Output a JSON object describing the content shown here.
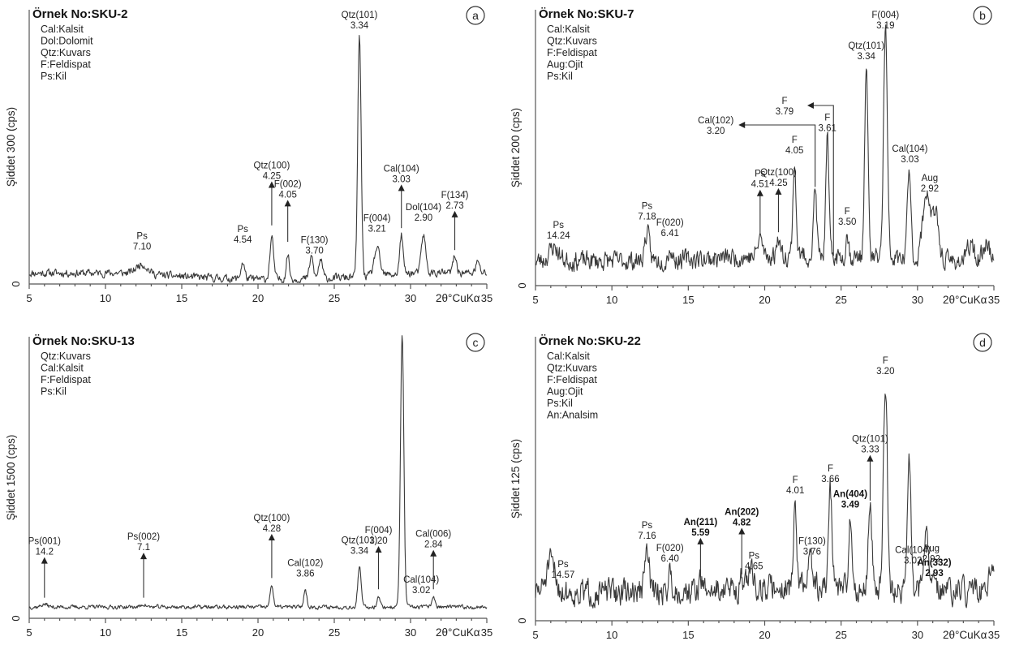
{
  "chart_data": [
    {
      "type": "line",
      "panel": "a",
      "title": "Örnek No:SKU-2",
      "legend": [
        "Cal:Kalsit",
        "Dol:Dolomit",
        "Qtz:Kuvars",
        "F:Feldispat",
        "Ps:Kil"
      ],
      "ylabel": "Şiddet 300  (cps)",
      "xlabel": "2θ°CuKα",
      "y_tick": "0",
      "xlim": [
        5,
        35
      ],
      "x_ticks": [
        "5",
        "10",
        "15",
        "20",
        "25",
        "30",
        "35"
      ],
      "baseline": 0.04,
      "peaks": [
        {
          "x": 12.4,
          "h": 0.035,
          "w": 0.35
        },
        {
          "x": 19.0,
          "h": 0.06,
          "w": 0.12
        },
        {
          "x": 20.9,
          "h": 0.15,
          "w": 0.12
        },
        {
          "x": 21.95,
          "h": 0.09,
          "w": 0.1
        },
        {
          "x": 23.5,
          "h": 0.08,
          "w": 0.12
        },
        {
          "x": 24.1,
          "h": 0.07,
          "w": 0.12
        },
        {
          "x": 26.65,
          "h": 0.88,
          "w": 0.11
        },
        {
          "x": 27.8,
          "h": 0.1,
          "w": 0.18
        },
        {
          "x": 29.4,
          "h": 0.14,
          "w": 0.11
        },
        {
          "x": 30.85,
          "h": 0.14,
          "w": 0.14
        },
        {
          "x": 32.9,
          "h": 0.06,
          "w": 0.12
        },
        {
          "x": 34.4,
          "h": 0.04,
          "w": 0.12
        }
      ],
      "labels": [
        {
          "lines": [
            "Ps",
            "7.10"
          ],
          "x": 12.4
        },
        {
          "lines": [
            "Ps",
            "4.54"
          ],
          "x": 19.0
        },
        {
          "lines": [
            "Qtz(100)",
            "4.25"
          ],
          "x": 20.9,
          "arrow": true
        },
        {
          "lines": [
            "F(002)",
            "4.05"
          ],
          "x": 21.95,
          "arrow": true
        },
        {
          "lines": [
            "F(130)",
            "3.70"
          ],
          "x": 23.7
        },
        {
          "lines": [
            "Qtz(101)",
            "3.34"
          ],
          "x": 26.65
        },
        {
          "lines": [
            "F(004)",
            "3.21"
          ],
          "x": 27.8
        },
        {
          "lines": [
            "Cal(104)",
            "3.03"
          ],
          "x": 29.4,
          "arrow": true
        },
        {
          "lines": [
            "Dol(104)",
            "2.90"
          ],
          "x": 30.85
        },
        {
          "lines": [
            "F(134̄)",
            "2.73"
          ],
          "x": 32.9,
          "arrow": true
        }
      ],
      "noise_seed": 11,
      "noise_amp": 0.012
    },
    {
      "type": "line",
      "panel": "b",
      "title": "Örnek No:SKU-7",
      "legend": [
        "Cal:Kalsit",
        "Qtz:Kuvars",
        "F:Feldispat",
        "Aug:Ojit",
        "Ps:Kil"
      ],
      "ylabel": "Şiddet 200  (cps)",
      "xlabel": "2θ°CuKα",
      "y_tick": "0",
      "xlim": [
        5,
        35
      ],
      "x_ticks": [
        "5",
        "10",
        "15",
        "20",
        "25",
        "30",
        "35"
      ],
      "baseline": 0.09,
      "peaks": [
        {
          "x": 6.2,
          "h": 0.05,
          "w": 0.3
        },
        {
          "x": 12.3,
          "h": 0.1,
          "w": 0.15
        },
        {
          "x": 13.8,
          "h": 0.04,
          "w": 0.12
        },
        {
          "x": 19.7,
          "h": 0.07,
          "w": 0.15
        },
        {
          "x": 20.9,
          "h": 0.08,
          "w": 0.1
        },
        {
          "x": 21.95,
          "h": 0.34,
          "w": 0.1
        },
        {
          "x": 23.3,
          "h": 0.25,
          "w": 0.1
        },
        {
          "x": 24.1,
          "h": 0.42,
          "w": 0.1
        },
        {
          "x": 25.4,
          "h": 0.08,
          "w": 0.1
        },
        {
          "x": 26.65,
          "h": 0.68,
          "w": 0.11
        },
        {
          "x": 27.9,
          "h": 0.84,
          "w": 0.12
        },
        {
          "x": 29.45,
          "h": 0.34,
          "w": 0.11
        },
        {
          "x": 30.6,
          "h": 0.25,
          "w": 0.25
        },
        {
          "x": 31.2,
          "h": 0.15,
          "w": 0.2
        },
        {
          "x": 33.5,
          "h": 0.06,
          "w": 0.2
        },
        {
          "x": 34.5,
          "h": 0.07,
          "w": 0.2
        }
      ],
      "labels": [
        {
          "lines": [
            "Ps",
            "14.24"
          ],
          "x": 6.5
        },
        {
          "lines": [
            "Ps",
            "7.18"
          ],
          "x": 12.3
        },
        {
          "lines": [
            "F(020)",
            "6.41"
          ],
          "x": 13.8
        },
        {
          "lines": [
            "Ps",
            "4.51"
          ],
          "x": 19.7,
          "arrow": true
        },
        {
          "lines": [
            "Qtz(100)",
            "4.25"
          ],
          "x": 20.9,
          "arrow": true
        },
        {
          "lines": [
            "F",
            "4.05"
          ],
          "x": 21.95
        },
        {
          "lines": [
            "Cal(102)",
            "3.20"
          ],
          "x": 16.8,
          "elbow": 23.3
        },
        {
          "lines": [
            "F",
            "3.79"
          ],
          "x": 21.3,
          "elbow": 24.5
        },
        {
          "lines": [
            "F",
            "3.61"
          ],
          "x": 24.1
        },
        {
          "lines": [
            "F",
            "3.50"
          ],
          "x": 25.4
        },
        {
          "lines": [
            "Qtz(101)",
            "3.34"
          ],
          "x": 26.65
        },
        {
          "lines": [
            "F(004)",
            "3.19"
          ],
          "x": 27.9
        },
        {
          "lines": [
            "Cal(104)",
            "3.03"
          ],
          "x": 29.5
        },
        {
          "lines": [
            "Aug",
            "2.92"
          ],
          "x": 30.8
        }
      ],
      "noise_seed": 23,
      "noise_amp": 0.03
    },
    {
      "type": "line",
      "panel": "c",
      "title": "Örnek No:SKU-13",
      "legend": [
        "Qtz:Kuvars",
        "Cal:Kalsit",
        "F:Feldispat",
        "Ps:Kil"
      ],
      "ylabel": "Şiddet 1500 (cps)",
      "xlabel": "2θ°CuKα",
      "y_tick": "0",
      "xlim": [
        5,
        35
      ],
      "x_ticks": [
        "5",
        "10",
        "15",
        "20",
        "25",
        "30",
        "35"
      ],
      "baseline": 0.04,
      "peaks": [
        {
          "x": 6.0,
          "h": 0.01,
          "w": 0.2
        },
        {
          "x": 12.5,
          "h": 0.01,
          "w": 0.15
        },
        {
          "x": 20.9,
          "h": 0.08,
          "w": 0.1
        },
        {
          "x": 23.1,
          "h": 0.06,
          "w": 0.1
        },
        {
          "x": 26.65,
          "h": 0.14,
          "w": 0.11
        },
        {
          "x": 27.9,
          "h": 0.04,
          "w": 0.1
        },
        {
          "x": 29.45,
          "h": 0.97,
          "w": 0.11
        },
        {
          "x": 31.5,
          "h": 0.04,
          "w": 0.1
        }
      ],
      "labels": [
        {
          "lines": [
            "Ps(001)",
            "14.2"
          ],
          "x": 6.0,
          "arrow": true
        },
        {
          "lines": [
            "Ps(002)",
            "7.1"
          ],
          "x": 12.5,
          "arrow": true
        },
        {
          "lines": [
            "Qtz(100)",
            "4.28"
          ],
          "x": 20.9,
          "arrow": true
        },
        {
          "lines": [
            "Cal(102)",
            "3.86"
          ],
          "x": 23.1
        },
        {
          "lines": [
            "Qtz(101)",
            "3.34"
          ],
          "x": 26.65
        },
        {
          "lines": [
            "F(004)",
            "3.20"
          ],
          "x": 27.9,
          "arrow": true
        },
        {
          "lines": [
            "Cal(104)",
            "3.02"
          ],
          "x": 30.7
        },
        {
          "lines": [
            "Cal(006)",
            "2.84"
          ],
          "x": 31.5,
          "arrow": true
        }
      ],
      "noise_seed": 37,
      "noise_amp": 0.006
    },
    {
      "type": "line",
      "panel": "d",
      "title": "Örnek No:SKU-22",
      "legend": [
        "Cal:Kalsit",
        "Qtz:Kuvars",
        "F:Feldispat",
        "Aug:Ojit",
        "Ps:Kil",
        "An:Analsim"
      ],
      "ylabel": "Şiddet 125 (cps)",
      "xlabel": "2θ°CuKα",
      "y_tick": "0",
      "xlim": [
        5,
        35
      ],
      "x_ticks": [
        "5",
        "10",
        "15",
        "20",
        "25",
        "30",
        "35"
      ],
      "baseline": 0.1,
      "peaks": [
        {
          "x": 6.0,
          "h": 0.1,
          "w": 0.3
        },
        {
          "x": 12.3,
          "h": 0.14,
          "w": 0.15
        },
        {
          "x": 13.8,
          "h": 0.06,
          "w": 0.12
        },
        {
          "x": 15.8,
          "h": 0.03,
          "w": 0.12
        },
        {
          "x": 18.5,
          "h": 0.04,
          "w": 0.12
        },
        {
          "x": 19.1,
          "h": 0.08,
          "w": 0.15
        },
        {
          "x": 22.0,
          "h": 0.3,
          "w": 0.1
        },
        {
          "x": 23.0,
          "h": 0.12,
          "w": 0.12
        },
        {
          "x": 24.3,
          "h": 0.34,
          "w": 0.12
        },
        {
          "x": 25.6,
          "h": 0.25,
          "w": 0.1
        },
        {
          "x": 26.9,
          "h": 0.3,
          "w": 0.12
        },
        {
          "x": 27.9,
          "h": 0.72,
          "w": 0.13
        },
        {
          "x": 29.45,
          "h": 0.46,
          "w": 0.12
        },
        {
          "x": 30.6,
          "h": 0.18,
          "w": 0.2
        },
        {
          "x": 34.8,
          "h": 0.06,
          "w": 0.2
        }
      ],
      "labels": [
        {
          "lines": [
            "Ps",
            "14.57"
          ],
          "x": 6.8
        },
        {
          "lines": [
            "Ps",
            "7.16"
          ],
          "x": 12.3
        },
        {
          "lines": [
            "F(020)",
            "6.40"
          ],
          "x": 13.8
        },
        {
          "lines": [
            "An(211)",
            "5.59"
          ],
          "x": 15.8,
          "arrow": true,
          "bold": true
        },
        {
          "lines": [
            "An(202)",
            "4.82"
          ],
          "x": 18.5,
          "arrow": true,
          "bold": true
        },
        {
          "lines": [
            "Ps",
            "4.65"
          ],
          "x": 19.3
        },
        {
          "lines": [
            "F",
            "4.01"
          ],
          "x": 22.0
        },
        {
          "lines": [
            "F(130)",
            "3.76"
          ],
          "x": 23.1
        },
        {
          "lines": [
            "F",
            "3.66"
          ],
          "x": 24.3
        },
        {
          "lines": [
            "An(404)",
            "3.49"
          ],
          "x": 25.6,
          "bold": true
        },
        {
          "lines": [
            "Qtz(101)",
            "3.33"
          ],
          "x": 26.9,
          "arrow": true
        },
        {
          "lines": [
            "F",
            "3.20"
          ],
          "x": 27.9
        },
        {
          "lines": [
            "Cal(104)",
            "3.02"
          ],
          "x": 29.7
        },
        {
          "lines": [
            "Aug",
            "2.92"
          ],
          "x": 30.9
        },
        {
          "lines": [
            "An(332)",
            "2.93"
          ],
          "x": 31.1,
          "bold": true
        }
      ],
      "noise_seed": 51,
      "noise_amp": 0.04
    }
  ],
  "panel_tags": [
    "a",
    "b",
    "c",
    "d"
  ]
}
